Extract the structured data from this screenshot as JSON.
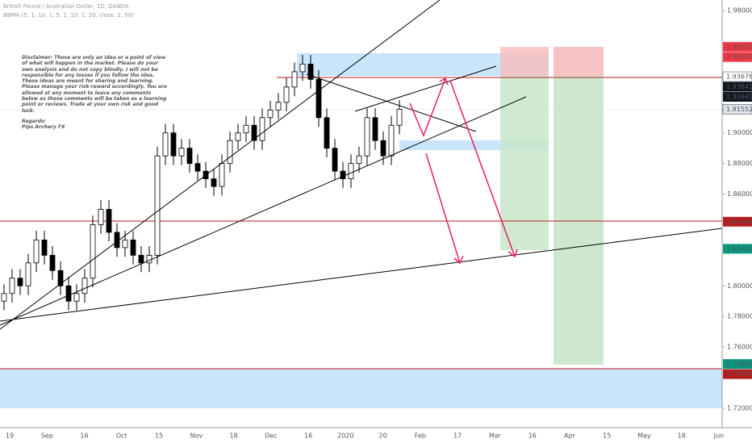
{
  "header": {
    "symbol": "British Pound / Australian Dollar, 1D, OANDA",
    "indicator": "BBMA (5, 1, 10, 1, 5, 1, 10, 1, 20, close, 2, 50)"
  },
  "note": {
    "disclaimer": "Disclaimer: These are only an idea or a point of view of what will happen in the market. Please do your own analysis and do not copy blindly. I will not be responsible for any losses if you follow the idea. These ideas are meant for sharing and learning. Please manage your risk-reward accordingly. You are allowed at any moment to leave any comments below as those comments will be taken as a learning point or reviews. Trade at your own risk and good luck.",
    "regards": "Regards:",
    "author": "Pips Archery FX"
  },
  "chart_data": {
    "type": "candlestick",
    "categories": [
      "19",
      "Sep",
      "16",
      "Oct",
      "15",
      "Nov",
      "18",
      "Dec",
      "16",
      "2020",
      "20",
      "Feb",
      "17",
      "Mar",
      "16",
      "Apr",
      "15",
      "May",
      "18",
      "Jun"
    ],
    "ylim": [
      1.7073,
      1.9869
    ],
    "yticks": [
      {
        "value": 1.98,
        "label": "1.98000"
      },
      {
        "value": 1.9,
        "label": "1.90000"
      },
      {
        "value": 1.88,
        "label": "1.88000"
      },
      {
        "value": 1.86,
        "label": "1.86000"
      },
      {
        "value": 1.8,
        "label": "1.80000"
      },
      {
        "value": 1.78,
        "label": "1.78000"
      },
      {
        "value": 1.76,
        "label": "1.76000"
      },
      {
        "value": 1.72,
        "label": "1.72000"
      }
    ],
    "up_color": "#ffffff",
    "down_color": "#000000",
    "open": [
      1.79,
      1.795,
      1.805,
      1.8,
      1.815,
      1.83,
      1.82,
      1.81,
      1.8,
      1.79,
      1.795,
      1.805,
      1.84,
      1.85,
      1.835,
      1.825,
      1.83,
      1.82,
      1.815,
      1.82,
      1.885,
      1.9,
      1.885,
      1.89,
      1.88,
      1.875,
      1.87,
      1.865,
      1.88,
      1.895,
      1.9,
      1.905,
      1.895,
      1.91,
      1.915,
      1.92,
      1.93,
      1.94,
      1.945,
      1.935,
      1.91,
      1.89,
      1.875,
      1.87,
      1.88,
      1.885,
      1.91,
      1.895,
      1.885,
      1.905
    ],
    "high": [
      1.801,
      1.811,
      1.811,
      1.821,
      1.836,
      1.836,
      1.826,
      1.816,
      1.806,
      1.801,
      1.811,
      1.846,
      1.856,
      1.856,
      1.841,
      1.836,
      1.836,
      1.826,
      1.826,
      1.891,
      1.906,
      1.906,
      1.896,
      1.896,
      1.886,
      1.881,
      1.876,
      1.886,
      1.901,
      1.906,
      1.911,
      1.911,
      1.916,
      1.921,
      1.926,
      1.936,
      1.946,
      1.951,
      1.951,
      1.941,
      1.916,
      1.896,
      1.881,
      1.886,
      1.891,
      1.916,
      1.916,
      1.901,
      1.911,
      1.9215
    ],
    "low": [
      1.784,
      1.789,
      1.794,
      1.794,
      1.809,
      1.814,
      1.804,
      1.794,
      1.784,
      1.784,
      1.789,
      1.799,
      1.834,
      1.829,
      1.819,
      1.819,
      1.814,
      1.809,
      1.809,
      1.814,
      1.879,
      1.879,
      1.879,
      1.874,
      1.869,
      1.864,
      1.859,
      1.859,
      1.874,
      1.889,
      1.894,
      1.889,
      1.889,
      1.904,
      1.909,
      1.914,
      1.924,
      1.934,
      1.929,
      1.904,
      1.884,
      1.869,
      1.864,
      1.864,
      1.874,
      1.879,
      1.889,
      1.879,
      1.879,
      1.899
    ],
    "close": [
      1.795,
      1.805,
      1.8,
      1.815,
      1.83,
      1.82,
      1.81,
      1.8,
      1.79,
      1.795,
      1.805,
      1.84,
      1.85,
      1.835,
      1.825,
      1.83,
      1.82,
      1.815,
      1.82,
      1.885,
      1.9,
      1.885,
      1.89,
      1.88,
      1.875,
      1.87,
      1.865,
      1.88,
      1.895,
      1.9,
      1.905,
      1.895,
      1.91,
      1.915,
      1.92,
      1.93,
      1.94,
      1.945,
      1.935,
      1.91,
      1.89,
      1.875,
      1.87,
      1.88,
      1.885,
      1.91,
      1.895,
      1.885,
      1.905,
      1.9155
    ],
    "price_labels": [
      {
        "value": 1.95621,
        "label": "1.95621",
        "color": "#f23645"
      },
      {
        "value": 1.95621,
        "label": "1.95621",
        "color": "#f23645"
      },
      {
        "value": 1.93676,
        "label": "1.93676",
        "color": "#ffffff"
      },
      {
        "value": 1.93641,
        "label": "1.93641",
        "color": "#131722"
      },
      {
        "value": 1.93641,
        "label": "1.93641",
        "color": "#131722"
      },
      {
        "value": 1.91552,
        "label": "1.91552",
        "color": "#e0e3eb"
      },
      {
        "value": 1.84194,
        "label": "1.84194",
        "color": "#b71c1c"
      },
      {
        "value": 1.82423,
        "label": "1.82423",
        "color": "#089981"
      },
      {
        "value": 1.7489,
        "label": "1.74890",
        "color": "#089981"
      },
      {
        "value": 1.74555,
        "label": "1.74555",
        "color": "#b71c1c"
      }
    ]
  }
}
